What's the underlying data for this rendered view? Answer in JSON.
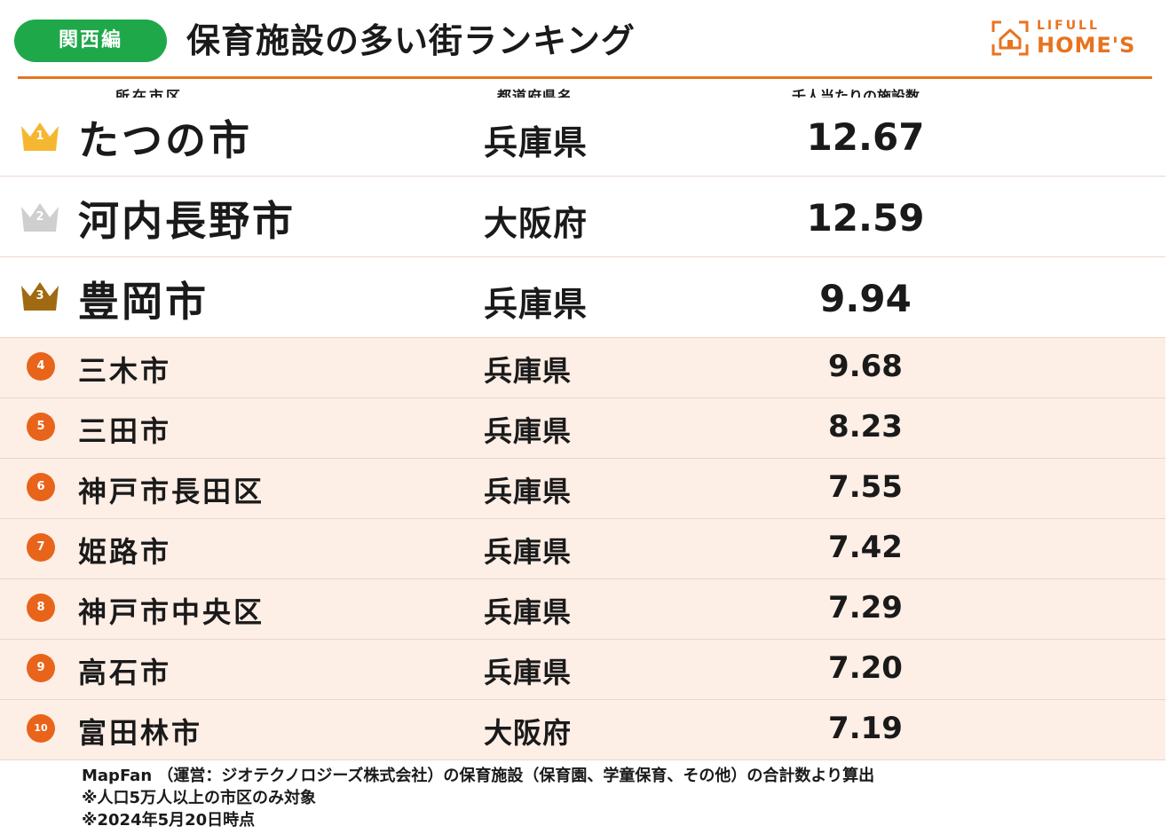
{
  "header": {
    "region_badge": "関西編",
    "title": "保育施設の多い街ランキング",
    "logo_top": "LIFULL",
    "logo_bottom": "HOME'S",
    "accent_color": "#e8731f",
    "badge_color": "#1fa84a"
  },
  "columns": {
    "city": "所在市区",
    "prefecture": "都道府県名",
    "value": "千人当たりの施設数"
  },
  "rankings": [
    {
      "rank": "1",
      "city": "たつの市",
      "prefecture": "兵庫県",
      "value": "12.67",
      "marker": "gold-crown",
      "marker_color": "#f5b731"
    },
    {
      "rank": "2",
      "city": "河内長野市",
      "prefecture": "大阪府",
      "value": "12.59",
      "marker": "silver-crown",
      "marker_color": "#cfcfcf"
    },
    {
      "rank": "3",
      "city": "豊岡市",
      "prefecture": "兵庫県",
      "value": "9.94",
      "marker": "bronze-crown",
      "marker_color": "#a06a12"
    },
    {
      "rank": "4",
      "city": "三木市",
      "prefecture": "兵庫県",
      "value": "9.68",
      "marker": "rank-circle"
    },
    {
      "rank": "5",
      "city": "三田市",
      "prefecture": "兵庫県",
      "value": "8.23",
      "marker": "rank-circle"
    },
    {
      "rank": "6",
      "city": "神戸市長田区",
      "prefecture": "兵庫県",
      "value": "7.55",
      "marker": "rank-circle"
    },
    {
      "rank": "7",
      "city": "姫路市",
      "prefecture": "兵庫県",
      "value": "7.42",
      "marker": "rank-circle"
    },
    {
      "rank": "8",
      "city": "神戸市中央区",
      "prefecture": "兵庫県",
      "value": "7.29",
      "marker": "rank-circle"
    },
    {
      "rank": "9",
      "city": "高石市",
      "prefecture": "兵庫県",
      "value": "7.20",
      "marker": "rank-circle"
    },
    {
      "rank": "10",
      "city": "富田林市",
      "prefecture": "大阪府",
      "value": "7.19",
      "marker": "rank-circle"
    }
  ],
  "notes": [
    "MapFan （運営：ジオテクノロジーズ株式会社）の保育施設（保育園、学童保育、その他）の合計数より算出",
    "※人口5万人以上の市区のみ対象",
    "※2024年5月20日時点"
  ]
}
